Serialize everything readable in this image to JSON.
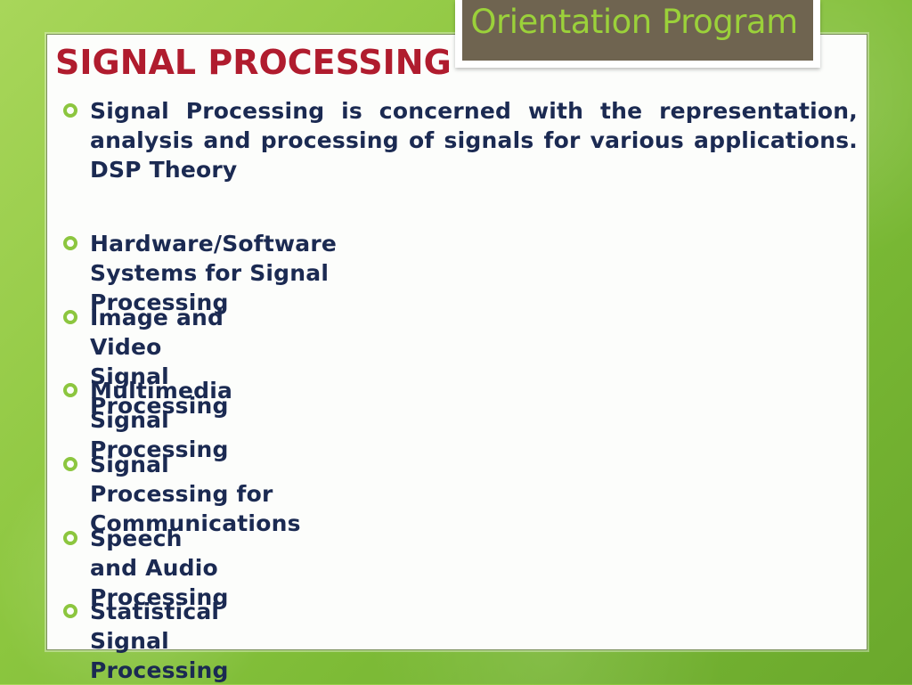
{
  "header": {
    "badge_text": "Orientation Program",
    "title": "SIGNAL PROCESSING"
  },
  "bullets": [
    {
      "text": "Signal Processing is concerned with the representation, analysis and processing of signals for various applications. DSP Theory"
    },
    {
      "text": "Hardware/Software Systems for Signal Processing"
    },
    {
      "text": "Image and Video Signal Processing"
    },
    {
      "text": "Multimedia Signal Processing"
    },
    {
      "text": "Signal Processing for Communications"
    },
    {
      "text": "Speech and Audio Processing"
    },
    {
      "text": "Statistical Signal Processing"
    }
  ],
  "colors": {
    "title": "#b01c2e",
    "badge_bg": "#6f6450",
    "badge_text": "#9bd13a",
    "bullet_text": "#1b2a52",
    "bullet_icon": "#8cc63f",
    "background": "#8cc63f"
  },
  "icons": {
    "bullet": "hollow-circle-bullet-icon"
  }
}
